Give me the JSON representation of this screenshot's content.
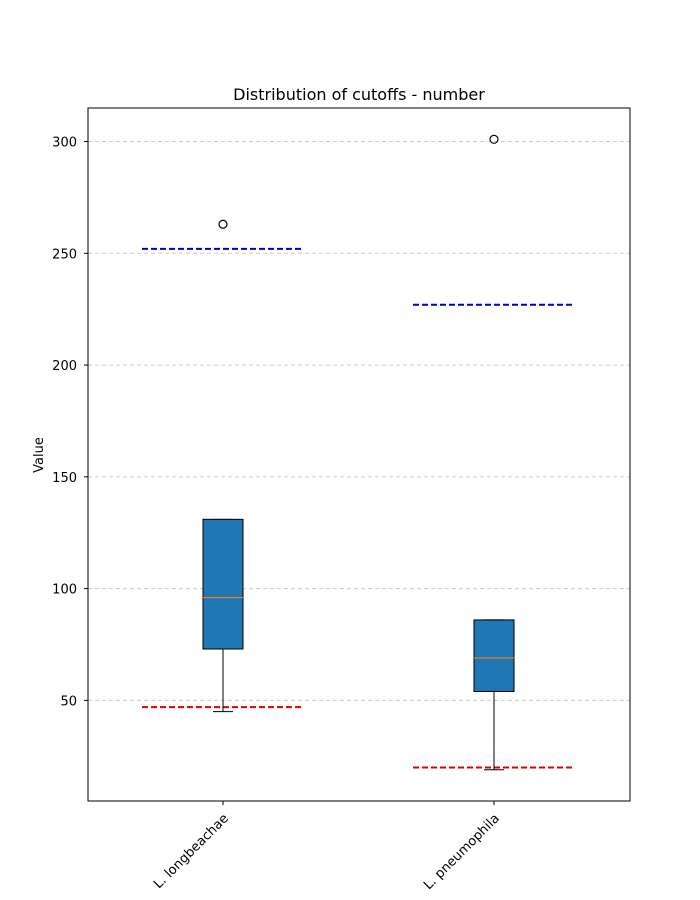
{
  "chart_data": {
    "type": "box",
    "title": "Distribution of cutoffs - number",
    "xlabel": "",
    "ylabel": "Value",
    "ylim": [
      5,
      315
    ],
    "yticks": [
      50,
      100,
      150,
      200,
      250,
      300
    ],
    "grid": "y-dashed",
    "categories": [
      "L. longbeachae",
      "L. pneumophila"
    ],
    "boxes": [
      {
        "whisker_low": 45,
        "q1": 73,
        "median": 96,
        "q3": 131,
        "whisker_high": 131,
        "outliers": [
          263
        ]
      },
      {
        "whisker_low": 19,
        "q1": 54,
        "median": 69,
        "q3": 86,
        "whisker_high": 86,
        "outliers": [
          301
        ]
      }
    ],
    "upper_reference_lines": [
      252,
      227
    ],
    "lower_reference_lines": [
      47,
      20
    ],
    "colors": {
      "box_fill": "#1f77b4",
      "median": "#ff7f0e",
      "upper_reference": "#0000cc",
      "lower_reference": "#dd0000",
      "grid": "#cccccc"
    }
  }
}
